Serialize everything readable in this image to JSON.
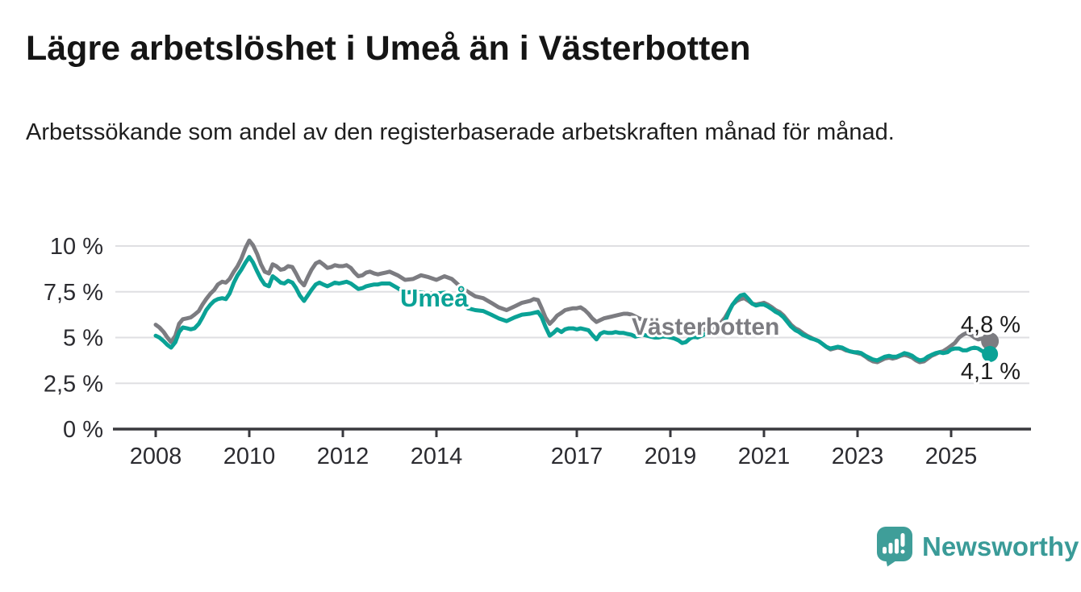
{
  "header": {
    "title": "Lägre arbetslöshet i Umeå än i Västerbotten",
    "subtitle": "Arbetssökande som andel av den registerbaserade arbetskraften månad för månad."
  },
  "footer": {
    "brand": "Newsworthy"
  },
  "colors": {
    "teal": "#0aa296",
    "gray": "#7c7c81",
    "logo_teal": "#3f9e99",
    "grid": "#dfdfe2",
    "axis": "#38383d",
    "tick_text": "#2b2b30",
    "value_text": "#1d1d1d"
  },
  "chart_data": {
    "type": "line",
    "unit": "%",
    "grid": true,
    "legend_position": "inline-labels",
    "ylim": [
      0,
      10.8
    ],
    "xlim": [
      2007.1,
      2026.9
    ],
    "y_ticks": [
      {
        "value": 0,
        "label": "0 %"
      },
      {
        "value": 2.5,
        "label": "2,5 %"
      },
      {
        "value": 5,
        "label": "5 %"
      },
      {
        "value": 7.5,
        "label": "7,5 %"
      },
      {
        "value": 10,
        "label": "10 %"
      }
    ],
    "x_ticks": [
      {
        "value": 2008,
        "label": "2008"
      },
      {
        "value": 2010,
        "label": "2010"
      },
      {
        "value": 2012,
        "label": "2012"
      },
      {
        "value": 2014,
        "label": "2014"
      },
      {
        "value": 2017,
        "label": "2017"
      },
      {
        "value": 2019,
        "label": "2019"
      },
      {
        "value": 2021,
        "label": "2021"
      },
      {
        "value": 2023,
        "label": "2023"
      },
      {
        "value": 2025,
        "label": "2025"
      }
    ],
    "series": [
      {
        "name": "Västerbotten",
        "color": "#7c7c81",
        "end_value": 4.8,
        "end_label": "4,8 %"
      },
      {
        "name": "Umeå",
        "color": "#0aa296",
        "end_value": 4.1,
        "end_label": "4,1 %"
      }
    ],
    "points_format": [
      "year_decimal",
      "umea_pct",
      "vasterbotten_pct"
    ],
    "points": [
      [
        2008.0,
        5.1,
        5.7
      ],
      [
        2008.08,
        5.0,
        5.55
      ],
      [
        2008.17,
        4.8,
        5.3
      ],
      [
        2008.25,
        4.6,
        5.0
      ],
      [
        2008.33,
        4.45,
        4.75
      ],
      [
        2008.42,
        4.75,
        5.1
      ],
      [
        2008.5,
        5.3,
        5.75
      ],
      [
        2008.58,
        5.55,
        6.0
      ],
      [
        2008.67,
        5.5,
        6.05
      ],
      [
        2008.75,
        5.45,
        6.1
      ],
      [
        2008.83,
        5.5,
        6.25
      ],
      [
        2008.92,
        5.75,
        6.45
      ],
      [
        2009.0,
        6.1,
        6.8
      ],
      [
        2009.08,
        6.5,
        7.1
      ],
      [
        2009.17,
        6.8,
        7.4
      ],
      [
        2009.25,
        7.0,
        7.6
      ],
      [
        2009.33,
        7.1,
        7.9
      ],
      [
        2009.42,
        7.15,
        8.05
      ],
      [
        2009.5,
        7.1,
        8.0
      ],
      [
        2009.58,
        7.4,
        8.2
      ],
      [
        2009.67,
        8.0,
        8.6
      ],
      [
        2009.75,
        8.4,
        8.9
      ],
      [
        2009.83,
        8.7,
        9.3
      ],
      [
        2009.92,
        9.1,
        9.9
      ],
      [
        2010.0,
        9.4,
        10.3
      ],
      [
        2010.08,
        9.1,
        10.05
      ],
      [
        2010.17,
        8.6,
        9.55
      ],
      [
        2010.25,
        8.2,
        9.0
      ],
      [
        2010.33,
        7.9,
        8.6
      ],
      [
        2010.42,
        7.8,
        8.5
      ],
      [
        2010.5,
        8.35,
        9.0
      ],
      [
        2010.58,
        8.2,
        8.9
      ],
      [
        2010.67,
        8.0,
        8.7
      ],
      [
        2010.75,
        7.95,
        8.75
      ],
      [
        2010.83,
        8.1,
        8.9
      ],
      [
        2010.92,
        8.0,
        8.85
      ],
      [
        2011.0,
        7.7,
        8.5
      ],
      [
        2011.08,
        7.3,
        8.1
      ],
      [
        2011.17,
        7.0,
        7.85
      ],
      [
        2011.25,
        7.3,
        8.3
      ],
      [
        2011.33,
        7.6,
        8.7
      ],
      [
        2011.42,
        7.9,
        9.05
      ],
      [
        2011.5,
        8.0,
        9.15
      ],
      [
        2011.58,
        7.9,
        9.0
      ],
      [
        2011.67,
        7.8,
        8.8
      ],
      [
        2011.75,
        7.9,
        8.85
      ],
      [
        2011.83,
        8.0,
        8.95
      ],
      [
        2011.92,
        7.95,
        8.9
      ],
      [
        2012.0,
        8.0,
        8.9
      ],
      [
        2012.08,
        8.05,
        8.95
      ],
      [
        2012.17,
        7.95,
        8.8
      ],
      [
        2012.25,
        7.8,
        8.55
      ],
      [
        2012.33,
        7.65,
        8.35
      ],
      [
        2012.42,
        7.7,
        8.4
      ],
      [
        2012.5,
        7.8,
        8.55
      ],
      [
        2012.58,
        7.85,
        8.6
      ],
      [
        2012.67,
        7.9,
        8.5
      ],
      [
        2012.75,
        7.9,
        8.45
      ],
      [
        2012.83,
        7.95,
        8.5
      ],
      [
        2012.92,
        7.95,
        8.55
      ],
      [
        2013.0,
        7.95,
        8.6
      ],
      [
        2013.17,
        7.7,
        8.4
      ],
      [
        2013.33,
        7.45,
        8.15
      ],
      [
        2013.5,
        7.5,
        8.2
      ],
      [
        2013.67,
        7.45,
        8.4
      ],
      [
        2013.83,
        7.4,
        8.3
      ],
      [
        2014.0,
        7.4,
        8.15
      ],
      [
        2014.17,
        7.45,
        8.35
      ],
      [
        2014.33,
        7.3,
        8.2
      ],
      [
        2014.5,
        7.0,
        7.8
      ],
      [
        2014.67,
        6.6,
        7.5
      ],
      [
        2014.83,
        6.5,
        7.25
      ],
      [
        2015.0,
        6.45,
        7.15
      ],
      [
        2015.17,
        6.25,
        6.9
      ],
      [
        2015.33,
        6.05,
        6.65
      ],
      [
        2015.5,
        5.9,
        6.5
      ],
      [
        2015.67,
        6.1,
        6.7
      ],
      [
        2015.83,
        6.25,
        6.9
      ],
      [
        2016.0,
        6.3,
        7.0
      ],
      [
        2016.08,
        6.35,
        7.1
      ],
      [
        2016.17,
        6.4,
        7.05
      ],
      [
        2016.25,
        6.1,
        6.6
      ],
      [
        2016.33,
        5.6,
        6.1
      ],
      [
        2016.42,
        5.1,
        5.75
      ],
      [
        2016.5,
        5.25,
        5.95
      ],
      [
        2016.58,
        5.45,
        6.2
      ],
      [
        2016.67,
        5.3,
        6.35
      ],
      [
        2016.75,
        5.45,
        6.5
      ],
      [
        2016.83,
        5.5,
        6.55
      ],
      [
        2016.92,
        5.5,
        6.6
      ],
      [
        2017.0,
        5.45,
        6.6
      ],
      [
        2017.08,
        5.5,
        6.65
      ],
      [
        2017.17,
        5.45,
        6.5
      ],
      [
        2017.25,
        5.4,
        6.3
      ],
      [
        2017.33,
        5.15,
        6.05
      ],
      [
        2017.42,
        4.9,
        5.85
      ],
      [
        2017.5,
        5.2,
        5.95
      ],
      [
        2017.58,
        5.3,
        6.05
      ],
      [
        2017.67,
        5.25,
        6.1
      ],
      [
        2017.75,
        5.25,
        6.15
      ],
      [
        2017.83,
        5.3,
        6.2
      ],
      [
        2017.92,
        5.25,
        6.25
      ],
      [
        2018.0,
        5.25,
        6.3
      ],
      [
        2018.08,
        5.2,
        6.3
      ],
      [
        2018.17,
        5.15,
        6.25
      ],
      [
        2018.25,
        5.05,
        6.15
      ],
      [
        2018.33,
        5.1,
        6.05
      ],
      [
        2018.42,
        5.15,
        5.95
      ],
      [
        2018.5,
        5.1,
        5.85
      ],
      [
        2018.58,
        5.05,
        5.8
      ],
      [
        2018.67,
        5.0,
        5.75
      ],
      [
        2018.75,
        5.0,
        5.7
      ],
      [
        2018.83,
        5.05,
        5.65
      ],
      [
        2018.92,
        5.05,
        5.6
      ],
      [
        2019.0,
        5.0,
        5.55
      ],
      [
        2019.08,
        4.95,
        5.5
      ],
      [
        2019.17,
        4.85,
        5.45
      ],
      [
        2019.25,
        4.7,
        5.4
      ],
      [
        2019.33,
        4.75,
        5.4
      ],
      [
        2019.42,
        4.95,
        5.45
      ],
      [
        2019.5,
        5.05,
        5.4
      ],
      [
        2019.58,
        5.0,
        5.35
      ],
      [
        2019.67,
        5.1,
        5.4
      ],
      [
        2019.75,
        5.2,
        5.45
      ],
      [
        2019.83,
        5.25,
        5.5
      ],
      [
        2019.92,
        5.3,
        5.55
      ],
      [
        2020.0,
        5.4,
        5.65
      ],
      [
        2020.08,
        5.55,
        5.8
      ],
      [
        2020.17,
        5.9,
        6.1
      ],
      [
        2020.25,
        6.4,
        6.45
      ],
      [
        2020.33,
        6.8,
        6.8
      ],
      [
        2020.42,
        7.1,
        7.0
      ],
      [
        2020.5,
        7.3,
        7.1
      ],
      [
        2020.58,
        7.35,
        7.15
      ],
      [
        2020.67,
        7.1,
        7.0
      ],
      [
        2020.75,
        6.85,
        6.85
      ],
      [
        2020.83,
        6.75,
        6.8
      ],
      [
        2020.92,
        6.8,
        6.85
      ],
      [
        2021.0,
        6.8,
        6.9
      ],
      [
        2021.08,
        6.7,
        6.8
      ],
      [
        2021.17,
        6.55,
        6.65
      ],
      [
        2021.25,
        6.4,
        6.5
      ],
      [
        2021.33,
        6.3,
        6.4
      ],
      [
        2021.42,
        6.1,
        6.2
      ],
      [
        2021.5,
        5.85,
        5.95
      ],
      [
        2021.58,
        5.6,
        5.7
      ],
      [
        2021.67,
        5.4,
        5.5
      ],
      [
        2021.75,
        5.3,
        5.4
      ],
      [
        2021.83,
        5.15,
        5.25
      ],
      [
        2021.92,
        5.05,
        5.1
      ],
      [
        2022.0,
        4.95,
        5.0
      ],
      [
        2022.08,
        4.9,
        4.9
      ],
      [
        2022.17,
        4.8,
        4.8
      ],
      [
        2022.25,
        4.65,
        4.65
      ],
      [
        2022.33,
        4.5,
        4.5
      ],
      [
        2022.42,
        4.4,
        4.35
      ],
      [
        2022.5,
        4.45,
        4.4
      ],
      [
        2022.58,
        4.5,
        4.45
      ],
      [
        2022.67,
        4.45,
        4.4
      ],
      [
        2022.75,
        4.35,
        4.3
      ],
      [
        2022.83,
        4.25,
        4.25
      ],
      [
        2022.92,
        4.2,
        4.2
      ],
      [
        2023.0,
        4.2,
        4.15
      ],
      [
        2023.08,
        4.15,
        4.1
      ],
      [
        2023.17,
        4.0,
        3.95
      ],
      [
        2023.25,
        3.9,
        3.8
      ],
      [
        2023.33,
        3.8,
        3.7
      ],
      [
        2023.42,
        3.75,
        3.65
      ],
      [
        2023.5,
        3.85,
        3.75
      ],
      [
        2023.58,
        3.95,
        3.85
      ],
      [
        2023.67,
        4.0,
        3.9
      ],
      [
        2023.75,
        3.95,
        3.85
      ],
      [
        2023.83,
        3.95,
        3.9
      ],
      [
        2023.92,
        4.05,
        4.0
      ],
      [
        2024.0,
        4.15,
        4.05
      ],
      [
        2024.08,
        4.1,
        4.0
      ],
      [
        2024.17,
        4.0,
        3.9
      ],
      [
        2024.25,
        3.85,
        3.75
      ],
      [
        2024.33,
        3.75,
        3.65
      ],
      [
        2024.42,
        3.8,
        3.7
      ],
      [
        2024.5,
        3.95,
        3.85
      ],
      [
        2024.58,
        4.05,
        4.0
      ],
      [
        2024.67,
        4.15,
        4.1
      ],
      [
        2024.75,
        4.2,
        4.2
      ],
      [
        2024.83,
        4.15,
        4.25
      ],
      [
        2024.92,
        4.2,
        4.4
      ],
      [
        2025.0,
        4.35,
        4.55
      ],
      [
        2025.08,
        4.4,
        4.7
      ],
      [
        2025.17,
        4.4,
        5.0
      ],
      [
        2025.25,
        4.3,
        5.15
      ],
      [
        2025.33,
        4.3,
        5.25
      ],
      [
        2025.42,
        4.4,
        5.15
      ],
      [
        2025.5,
        4.45,
        5.0
      ],
      [
        2025.58,
        4.4,
        4.9
      ],
      [
        2025.67,
        4.25,
        4.95
      ],
      [
        2025.75,
        4.15,
        4.9
      ],
      [
        2025.83,
        4.1,
        4.8
      ]
    ]
  }
}
